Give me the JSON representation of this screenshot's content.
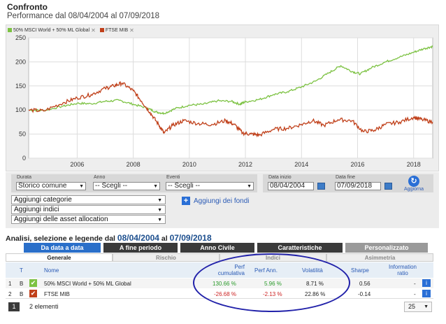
{
  "header": {
    "title": "Confronto",
    "subtitle": "Performance dal 08/04/2004 al 07/09/2018"
  },
  "legend": [
    {
      "label": "50% MSCI World + 50% ML Global",
      "color": "#7cc242"
    },
    {
      "label": "FTSE MIB",
      "color": "#c0401a"
    }
  ],
  "chart_data": {
    "type": "line",
    "x_ticks": [
      "2006",
      "2008",
      "2010",
      "2012",
      "2014",
      "2016",
      "2018"
    ],
    "y_ticks": [
      0,
      50,
      100,
      150,
      200,
      250
    ],
    "ylim": [
      0,
      250
    ],
    "xlim": [
      2004.27,
      2018.68
    ],
    "grid": true,
    "legend_position": "top-left",
    "series": [
      {
        "name": "50% MSCI World + 50% ML Global",
        "color": "#7cc242",
        "points": [
          [
            2004.27,
            100
          ],
          [
            2004.8,
            99
          ],
          [
            2005.5,
            108
          ],
          [
            2006.0,
            114
          ],
          [
            2006.5,
            113
          ],
          [
            2007.0,
            118
          ],
          [
            2007.5,
            120
          ],
          [
            2008.0,
            112
          ],
          [
            2008.5,
            104
          ],
          [
            2008.8,
            96
          ],
          [
            2009.1,
            93
          ],
          [
            2009.5,
            103
          ],
          [
            2010.0,
            110
          ],
          [
            2010.5,
            112
          ],
          [
            2011.0,
            119
          ],
          [
            2011.5,
            118
          ],
          [
            2011.8,
            112
          ],
          [
            2012.0,
            117
          ],
          [
            2012.5,
            122
          ],
          [
            2013.0,
            132
          ],
          [
            2013.5,
            138
          ],
          [
            2014.0,
            148
          ],
          [
            2014.5,
            160
          ],
          [
            2015.0,
            178
          ],
          [
            2015.4,
            192
          ],
          [
            2015.8,
            180
          ],
          [
            2016.1,
            175
          ],
          [
            2016.5,
            188
          ],
          [
            2017.0,
            200
          ],
          [
            2017.5,
            210
          ],
          [
            2018.0,
            220
          ],
          [
            2018.4,
            228
          ],
          [
            2018.68,
            232
          ]
        ]
      },
      {
        "name": "FTSE MIB",
        "color": "#c0401a",
        "points": [
          [
            2004.27,
            100
          ],
          [
            2004.8,
            98
          ],
          [
            2005.5,
            115
          ],
          [
            2006.0,
            125
          ],
          [
            2006.5,
            132
          ],
          [
            2007.0,
            145
          ],
          [
            2007.3,
            150
          ],
          [
            2007.6,
            156
          ],
          [
            2008.0,
            140
          ],
          [
            2008.3,
            118
          ],
          [
            2008.6,
            95
          ],
          [
            2008.9,
            70
          ],
          [
            2009.1,
            52
          ],
          [
            2009.4,
            68
          ],
          [
            2009.8,
            78
          ],
          [
            2010.3,
            72
          ],
          [
            2010.8,
            70
          ],
          [
            2011.3,
            78
          ],
          [
            2011.6,
            70
          ],
          [
            2011.9,
            52
          ],
          [
            2012.2,
            50
          ],
          [
            2012.5,
            48
          ],
          [
            2013.0,
            60
          ],
          [
            2013.5,
            62
          ],
          [
            2014.0,
            70
          ],
          [
            2014.4,
            78
          ],
          [
            2014.8,
            68
          ],
          [
            2015.3,
            80
          ],
          [
            2015.8,
            78
          ],
          [
            2016.2,
            55
          ],
          [
            2016.6,
            58
          ],
          [
            2017.0,
            70
          ],
          [
            2017.5,
            75
          ],
          [
            2018.0,
            85
          ],
          [
            2018.3,
            80
          ],
          [
            2018.68,
            75
          ]
        ]
      }
    ]
  },
  "controls": {
    "durata_label": "Durata",
    "durata_value": "Storico comune",
    "anno_label": "Anno",
    "anno_value": "-- Scegli --",
    "eventi_label": "Eventi",
    "eventi_value": "-- Scegli --",
    "data_inizio_label": "Data inizio",
    "data_inizio_value": "08/04/2004",
    "data_fine_label": "Data fine",
    "data_fine_value": "07/09/2018",
    "refresh_label": "Aggiorna",
    "add_categories": "Aggiungi categorie",
    "add_indices": "Aggiungi indici",
    "add_asset_allocation": "Aggiungi delle asset allocation",
    "add_funds": "Aggiungi dei fondi"
  },
  "analysis": {
    "title_prefix": "Analisi, selezione e legende dal",
    "date_from": "08/04/2004",
    "title_mid": "al",
    "date_to": "07/09/2018"
  },
  "tabs": [
    "Da data a data",
    "A fine periodo",
    "Anno Civile",
    "Caratteristiche",
    "Personalizzato"
  ],
  "subtabs": [
    "Generale",
    "Rischio",
    "Indici",
    "Asimmetria"
  ],
  "table": {
    "col_t": "T",
    "col_nome": "Nome",
    "col_perf_cum": "Perf cumulativa",
    "col_perf_ann": "Perf Ann.",
    "col_vol": "Volatilità",
    "col_sharpe": "Sharpe",
    "col_info": "Information ratio",
    "rows": [
      {
        "idx": "1",
        "t": "B",
        "name": "50% MSCI World + 50% ML Global",
        "perf_cum": "130.66 %",
        "perf_ann": "5.96 %",
        "vol": "8.71 %",
        "sharpe": "0.56",
        "info": "-"
      },
      {
        "idx": "2",
        "t": "B",
        "name": "FTSE MIB",
        "perf_cum": "-26.68 %",
        "perf_ann": "-2.13 %",
        "vol": "22.86 %",
        "sharpe": "-0.14",
        "info": "-"
      }
    ]
  },
  "footer": {
    "page": "1",
    "count": "2 elementi",
    "per_page": "25"
  }
}
